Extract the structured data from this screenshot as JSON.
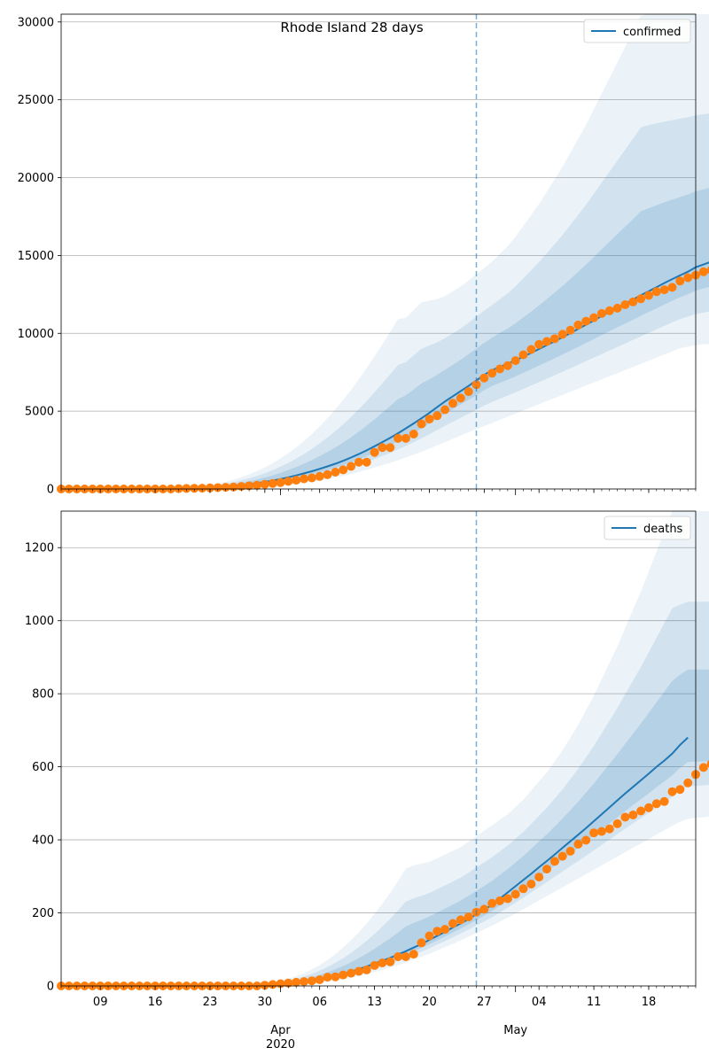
{
  "figure_title": "Rhode Island 28 days",
  "colors": {
    "line": "#1f77b4",
    "observed": "#ff7f0e",
    "band": "#1f77b4",
    "grid": "#b0b0b0",
    "cutoff": "#1f77b4"
  },
  "x_axis": {
    "start_date": "2020-03-04",
    "end_date": "2020-05-24",
    "day_ticks": [
      "09",
      "16",
      "23",
      "30",
      "06",
      "13",
      "20",
      "27",
      "04",
      "11",
      "18"
    ],
    "tick_dates": [
      "2020-03-09",
      "2020-03-16",
      "2020-03-23",
      "2020-03-30",
      "2020-04-06",
      "2020-04-13",
      "2020-04-20",
      "2020-04-27",
      "2020-05-04",
      "2020-05-11",
      "2020-05-18"
    ],
    "month_labels": [
      {
        "label": "Apr",
        "date": "2020-04-01"
      },
      {
        "label": "May",
        "date": "2020-05-01"
      }
    ],
    "year_label": "2020",
    "cutoff_date": "2020-04-26"
  },
  "chart_data": [
    {
      "type": "line",
      "title": "Rhode Island 28 days",
      "legend": "confirmed",
      "legend_position": "top-right",
      "grid": "y",
      "ylim": [
        0,
        30500
      ],
      "yticks": [
        "0",
        "5000",
        "10000",
        "15000",
        "20000",
        "25000",
        "30000"
      ],
      "ytick_values": [
        0,
        5000,
        10000,
        15000,
        20000,
        25000,
        30000
      ],
      "observed": {
        "start": "2020-03-04",
        "values": [
          0,
          0,
          0,
          0,
          0,
          0,
          0,
          0,
          0,
          0,
          0,
          0,
          0,
          0,
          0,
          20,
          33,
          44,
          54,
          66,
          83,
          106,
          124,
          165,
          203,
          239,
          294,
          353,
          408,
          488,
          566,
          657,
          711,
          806,
          922,
          1082,
          1229,
          1450,
          1727,
          1727,
          2349,
          2665,
          2665,
          3251,
          3251,
          3529,
          4177,
          4491,
          4706,
          5090,
          5500,
          5841,
          6256,
          6699,
          7129,
          7439,
          7708,
          7926,
          8247,
          8621,
          8962,
          9289,
          9477,
          9652,
          9933,
          10205,
          10530,
          10779,
          11006,
          11274,
          11450,
          11614,
          11835,
          12016,
          12219,
          12434,
          12674,
          12795,
          12951,
          13356,
          13571,
          13736,
          13952,
          14065
        ]
      },
      "fit": {
        "start": "2020-03-04",
        "values": [
          0,
          0,
          0,
          0,
          0,
          0,
          0,
          0,
          0,
          0,
          0,
          0,
          0,
          0,
          5,
          10,
          20,
          35,
          55,
          80,
          110,
          145,
          190,
          240,
          300,
          370,
          450,
          540,
          640,
          750,
          870,
          1000,
          1140,
          1290,
          1450,
          1620,
          1810,
          2020,
          2240,
          2480,
          2740,
          3010,
          3290,
          3580,
          3890,
          4210,
          4540,
          4890,
          5260,
          5620,
          5960,
          6290,
          6620,
          6970,
          7330,
          7630,
          7840,
          8040,
          8260,
          8500,
          8740,
          8990,
          9240,
          9490,
          9750,
          10010,
          10280,
          10550,
          10830,
          11110,
          11390,
          11650,
          11900,
          12170,
          12450,
          12700,
          12960,
          13230,
          13480,
          13720,
          13960,
          14240,
          14420,
          14600,
          15050,
          15250
        ]
      },
      "bands": [
        {
          "start": "2020-03-04",
          "lower": [
            0,
            0,
            0,
            0,
            0,
            0,
            0,
            0,
            0,
            0,
            0,
            0,
            0,
            0,
            0,
            0,
            0,
            0,
            0,
            0,
            0,
            0,
            20,
            40,
            60,
            90,
            120,
            160,
            210,
            260,
            320,
            390,
            460,
            540,
            630,
            730,
            840,
            960,
            1090,
            1230,
            1380,
            1530,
            1680,
            1850,
            2020,
            2200,
            2390,
            2590,
            2800,
            3010,
            3220,
            3430,
            3640,
            3840,
            4040,
            4240,
            4440,
            4640,
            4840,
            5040,
            5240,
            5440,
            5640,
            5840,
            6040,
            6240,
            6440,
            6640,
            6840,
            7040,
            7240,
            7440,
            7640,
            7840,
            8040,
            8240,
            8440,
            8640,
            8840,
            9040,
            9140,
            9240,
            9290,
            9300
          ],
          "upper": [
            0,
            0,
            0,
            0,
            0,
            0,
            0,
            0,
            0,
            0,
            0,
            0,
            0,
            0,
            30,
            60,
            100,
            150,
            210,
            280,
            370,
            470,
            600,
            760,
            940,
            1150,
            1390,
            1660,
            1960,
            2300,
            2670,
            3080,
            3530,
            4020,
            4550,
            5120,
            5720,
            6360,
            7050,
            7770,
            8520,
            9300,
            10100,
            10900,
            11000,
            11500,
            12000,
            12100,
            12200,
            12400,
            12700,
            13000,
            13400,
            13800,
            14200,
            14600,
            15100,
            15600,
            16200,
            16900,
            17600,
            18300,
            19100,
            19900,
            20700,
            21600,
            22500,
            23400,
            24400,
            25400,
            26400,
            27400,
            28400,
            29400,
            30400,
            30500,
            30500,
            30500,
            30500,
            30500,
            30500,
            30500,
            30500,
            30500
          ]
        }
      ]
    },
    {
      "type": "line",
      "legend": "deaths",
      "legend_position": "top-right",
      "grid": "y",
      "ylim": [
        0,
        1300
      ],
      "yticks": [
        "0",
        "200",
        "400",
        "600",
        "800",
        "1000",
        "1200"
      ],
      "ytick_values": [
        0,
        200,
        400,
        600,
        800,
        1000,
        1200
      ],
      "observed": {
        "start": "2020-03-04",
        "values": [
          0,
          0,
          0,
          0,
          0,
          0,
          0,
          0,
          0,
          0,
          0,
          0,
          0,
          0,
          0,
          0,
          0,
          0,
          0,
          0,
          0,
          0,
          0,
          0,
          0,
          0,
          2,
          4,
          6,
          8,
          10,
          12,
          14,
          17,
          24,
          25,
          30,
          35,
          40,
          44,
          56,
          63,
          66,
          80,
          80,
          87,
          118,
          137,
          150,
          155,
          171,
          181,
          189,
          202,
          210,
          226,
          233,
          239,
          251,
          266,
          279,
          298,
          320,
          341,
          355,
          369,
          388,
          399,
          419,
          423,
          430,
          444,
          462,
          468,
          479,
          488,
          499,
          505,
          532,
          538,
          556,
          579,
          598,
          608
        ]
      },
      "fit": {
        "start": "2020-03-04",
        "values": [
          0,
          0,
          0,
          0,
          0,
          0,
          0,
          0,
          0,
          0,
          0,
          0,
          0,
          0,
          0,
          0,
          0,
          0,
          0,
          0,
          0,
          0,
          0,
          0,
          0,
          1,
          2,
          3,
          5,
          7,
          9,
          12,
          15,
          19,
          23,
          28,
          33,
          39,
          46,
          53,
          61,
          69,
          77,
          86,
          95,
          105,
          115,
          126,
          137,
          148,
          160,
          171,
          183,
          196,
          209,
          222,
          239,
          256,
          273,
          290,
          307,
          325,
          342,
          360,
          378,
          396,
          414,
          432,
          451,
          470,
          489,
          508,
          527,
          545,
          563,
          581,
          600,
          617,
          636,
          660,
          680
        ]
      },
      "bands": [
        {
          "start": "2020-03-04",
          "lower": [
            0,
            0,
            0,
            0,
            0,
            0,
            0,
            0,
            0,
            0,
            0,
            0,
            0,
            0,
            0,
            0,
            0,
            0,
            0,
            0,
            0,
            0,
            0,
            0,
            0,
            0,
            0,
            0,
            1,
            2,
            3,
            5,
            7,
            9,
            12,
            15,
            18,
            22,
            27,
            32,
            38,
            44,
            50,
            57,
            64,
            72,
            80,
            88,
            97,
            106,
            115,
            125,
            135,
            145,
            155,
            165,
            176,
            187,
            198,
            210,
            222,
            234,
            246,
            258,
            270,
            282,
            294,
            306,
            318,
            330,
            342,
            354,
            366,
            378,
            390,
            402,
            414,
            426,
            438,
            450,
            457,
            460,
            462,
            465
          ],
          "upper": [
            0,
            0,
            0,
            0,
            0,
            0,
            0,
            0,
            0,
            0,
            0,
            0,
            0,
            0,
            0,
            0,
            0,
            0,
            0,
            0,
            0,
            0,
            0,
            0,
            0,
            2,
            5,
            9,
            14,
            20,
            27,
            35,
            45,
            57,
            71,
            87,
            105,
            125,
            147,
            171,
            197,
            225,
            255,
            287,
            321,
            330,
            335,
            340,
            350,
            360,
            370,
            380,
            395,
            410,
            425,
            440,
            455,
            470,
            490,
            510,
            535,
            560,
            585,
            615,
            645,
            680,
            715,
            755,
            795,
            840,
            885,
            930,
            980,
            1030,
            1080,
            1135,
            1190,
            1245,
            1300,
            1300,
            1300,
            1300,
            1300,
            1300
          ]
        }
      ]
    }
  ]
}
